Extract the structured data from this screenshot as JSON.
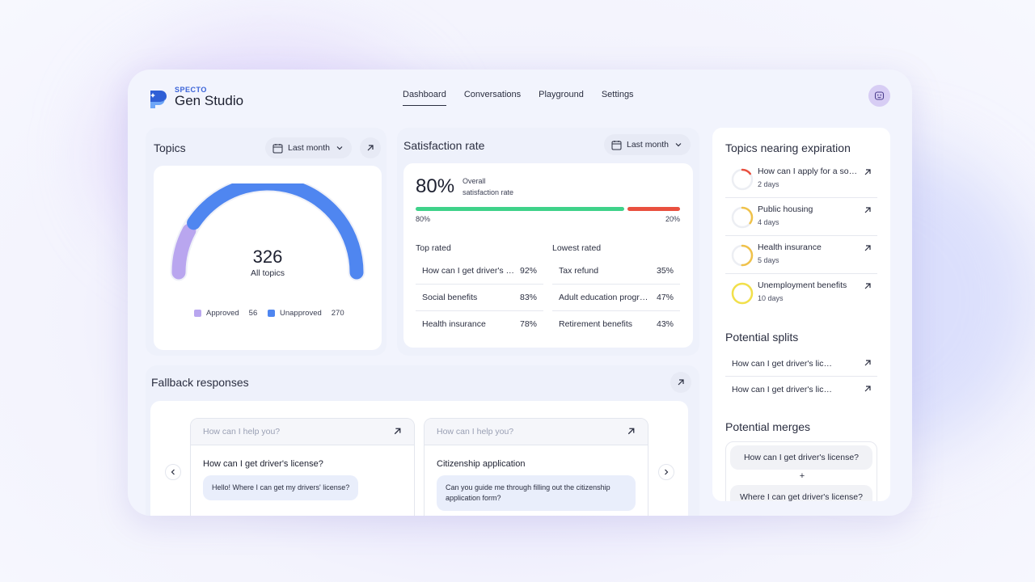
{
  "header": {
    "brand": "SPECTO",
    "product": "Gen Studio",
    "nav": [
      {
        "label": "Dashboard",
        "active": true
      },
      {
        "label": "Conversations",
        "active": false
      },
      {
        "label": "Playground",
        "active": false
      },
      {
        "label": "Settings",
        "active": false
      }
    ]
  },
  "topics": {
    "title": "Topics",
    "filter": "Last month",
    "total": "326",
    "total_label": "All topics",
    "approved": {
      "label": "Approved",
      "count": "56",
      "value": 56,
      "color": "#b9a6ef"
    },
    "unapproved": {
      "label": "Unapproved",
      "count": "270",
      "value": 270,
      "color": "#4f86f0"
    }
  },
  "satisfaction": {
    "title": "Satisfaction rate",
    "filter": "Last month",
    "rate": "80%",
    "rate_label_1": "Overall",
    "rate_label_2": "satisfaction rate",
    "positive": {
      "label": "80%",
      "value": 80,
      "color": "#3fd28a"
    },
    "negative": {
      "label": "20%",
      "value": 20,
      "color": "#e9503f"
    },
    "top_rated": {
      "title": "Top rated",
      "rows": [
        {
          "q": "How can I get driver's license?",
          "v": "92%"
        },
        {
          "q": "Social benefits",
          "v": "83%"
        },
        {
          "q": "Health insurance",
          "v": "78%"
        }
      ]
    },
    "lowest_rated": {
      "title": "Lowest rated",
      "rows": [
        {
          "q": "Tax refund",
          "v": "35%"
        },
        {
          "q": "Adult education programs",
          "v": "47%"
        },
        {
          "q": "Retirement benefits",
          "v": "43%"
        }
      ]
    }
  },
  "fallback": {
    "title": "Fallback responses",
    "cards": [
      {
        "placeholder": "How can I help you?",
        "question": "How can I get driver's license?",
        "message": "Hello! Where I can get my drivers' license?"
      },
      {
        "placeholder": "How can I help you?",
        "question": "Citizenship application",
        "message": "Can you guide me through filling out the citizenship application form?"
      }
    ]
  },
  "expiration": {
    "title": "Topics nearing expiration",
    "items": [
      {
        "title": "How can I apply for a social benefit?",
        "days": "2 days",
        "color": "#e9503f",
        "fraction": 0.15
      },
      {
        "title": "Public housing",
        "days": "4 days",
        "color": "#f0c24a",
        "fraction": 0.35
      },
      {
        "title": "Health insurance",
        "days": "5 days",
        "color": "#f0c24a",
        "fraction": 0.5
      },
      {
        "title": "Unemployment benefits",
        "days": "10 days",
        "color": "#f2e04a",
        "fraction": 1.0
      }
    ]
  },
  "splits": {
    "title": "Potential splits",
    "items": [
      "How can I get driver's license?",
      "How can I get driver's license?"
    ]
  },
  "merges": {
    "title": "Potential merges",
    "first": "How can I get driver's license?",
    "plus": "+",
    "second": "Where I can get driver's license?"
  }
}
